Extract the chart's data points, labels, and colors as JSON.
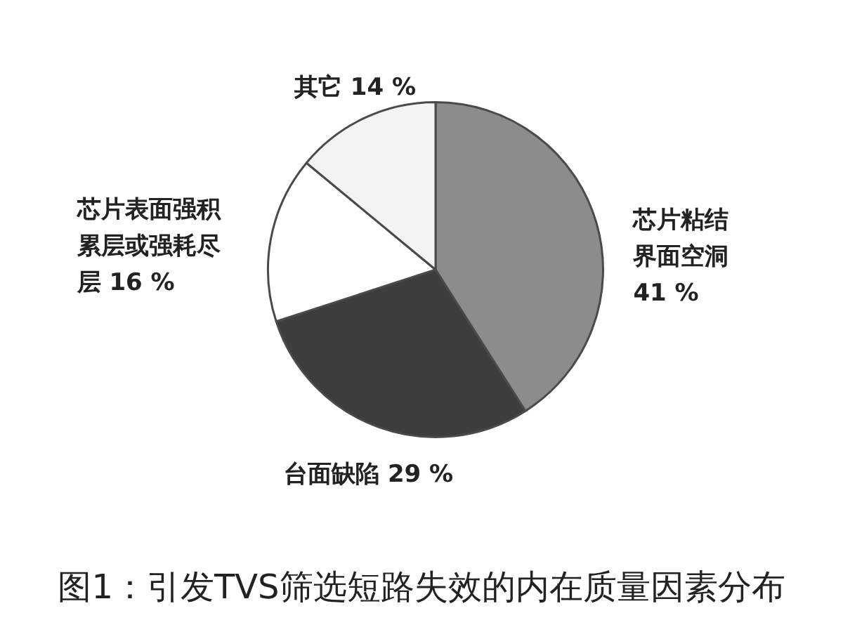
{
  "chart_data": {
    "type": "pie",
    "title": "图1：引发TVS筛选短路失效的内在质量因素分布",
    "categories": [
      "芯片粘结界面空洞",
      "台面缺陷",
      "芯片表面强积累层或强耗尽层",
      "其它"
    ],
    "values": [
      41,
      29,
      16,
      14
    ],
    "colors": [
      "#8c8c8c",
      "#3d3d3d",
      "#ffffff",
      "#f3f3f3"
    ],
    "value_labels": [
      "41 %",
      "29 %",
      "16 %",
      "14 %"
    ],
    "legend": false
  }
}
